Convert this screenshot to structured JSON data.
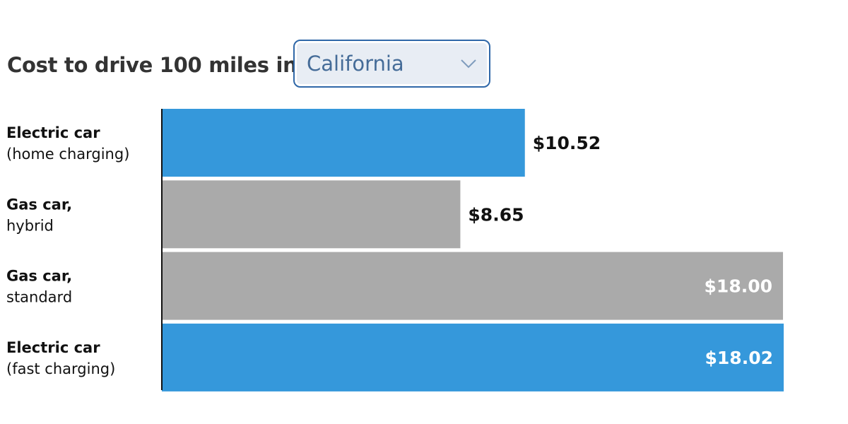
{
  "header": {
    "title": "Cost to drive 100 miles in",
    "state_select": {
      "selected": "California"
    }
  },
  "colors": {
    "electric": "#3598db",
    "gas": "#aaaaaa",
    "axis": "#111111",
    "inside_label": "#ffffff",
    "outside_label": "#111111"
  },
  "icons": {
    "dropdown": "chevron-down-icon"
  },
  "chart_data": {
    "type": "bar",
    "orientation": "horizontal",
    "title": "Cost to drive 100 miles in California",
    "categories": [
      [
        "Electric car",
        "(home charging)"
      ],
      [
        "Gas car,",
        "hybrid"
      ],
      [
        "Gas car,",
        "standard"
      ],
      [
        "Electric car",
        "(fast charging)"
      ]
    ],
    "values": [
      10.52,
      8.65,
      18.0,
      18.02
    ],
    "value_labels": [
      "$10.52",
      "$8.65",
      "$18.00",
      "$18.02"
    ],
    "kinds": [
      "electric",
      "gas",
      "gas",
      "electric"
    ],
    "unit": "$",
    "xlim": [
      0,
      18.02
    ],
    "grid": false,
    "legend": "none"
  }
}
